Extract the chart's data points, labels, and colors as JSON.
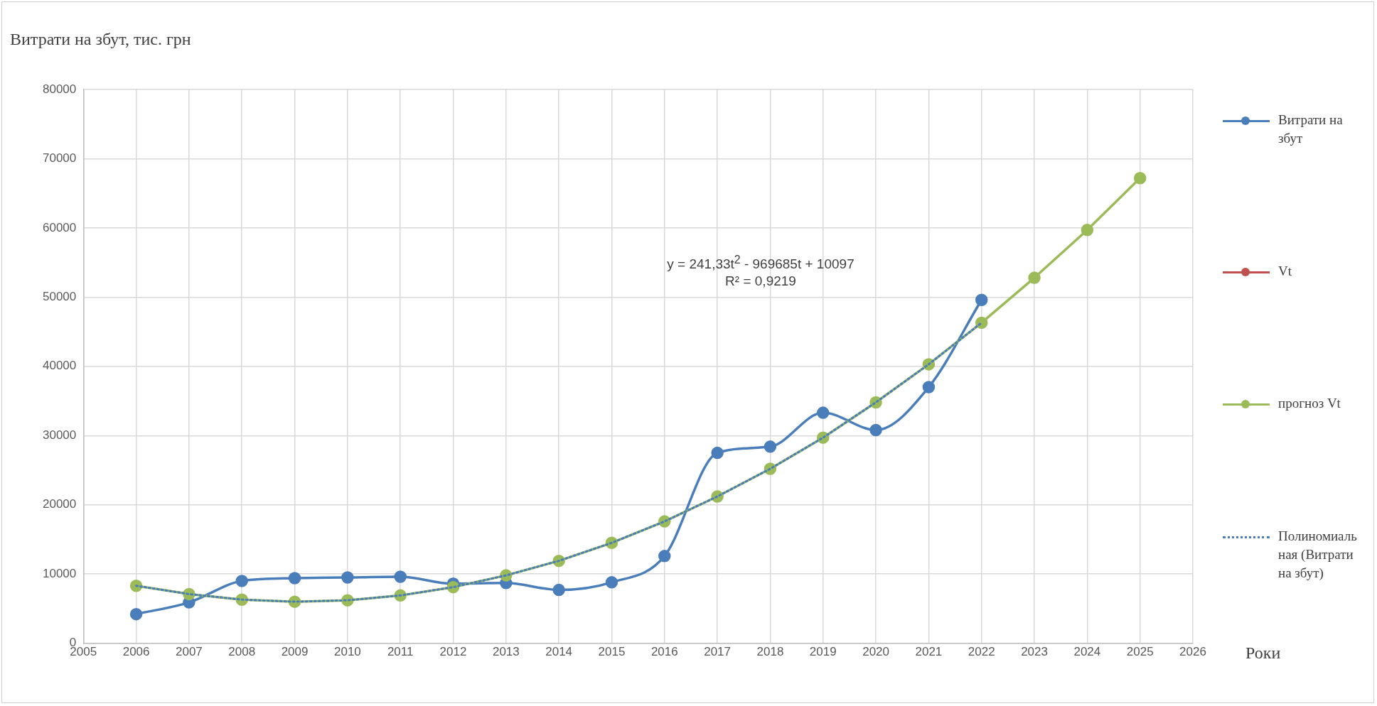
{
  "chart_data": {
    "type": "line",
    "ylabel": "Витрати на збут, тис. грн",
    "xlabel": "Роки",
    "annotations": [
      "y = 241,33t$^{2}$ - 969685t + 10097",
      "R² = 0,9219"
    ],
    "xlim": [
      2005,
      2026
    ],
    "xticks": [
      2005,
      2006,
      2007,
      2008,
      2009,
      2010,
      2011,
      2012,
      2013,
      2014,
      2015,
      2016,
      2017,
      2018,
      2019,
      2020,
      2021,
      2022,
      2023,
      2024,
      2025,
      2026
    ],
    "ylim": [
      0,
      80000
    ],
    "yticks": [
      0,
      10000,
      20000,
      30000,
      40000,
      50000,
      60000,
      70000,
      80000
    ],
    "grid": true,
    "legend": "right",
    "marker": "circle",
    "series": [
      {
        "name": "Витрати на збут",
        "color": "#4a7ebb",
        "x": [
          2006,
          2007,
          2008,
          2009,
          2010,
          2011,
          2012,
          2013,
          2014,
          2015,
          2016,
          2017,
          2018,
          2019,
          2020,
          2021,
          2022
        ],
        "values": [
          4200,
          5900,
          9000,
          9400,
          9500,
          9600,
          8600,
          8700,
          7700,
          8800,
          12600,
          27500,
          28400,
          33300,
          30800,
          37000,
          49600
        ]
      },
      {
        "name": "Vt",
        "color": "#c0504d"
      },
      {
        "name": "прогноз Vt",
        "color": "#9bbb59",
        "x": [
          2006,
          2007,
          2008,
          2009,
          2010,
          2011,
          2012,
          2013,
          2014,
          2015,
          2016,
          2017,
          2018,
          2019,
          2020,
          2021,
          2022,
          2023,
          2024,
          2025
        ],
        "values": [
          8300,
          7100,
          6300,
          6000,
          6200,
          6900,
          8100,
          9800,
          11900,
          14500,
          17600,
          21200,
          25200,
          29700,
          34800,
          40300,
          46300,
          52800,
          59700,
          67200
        ]
      },
      {
        "name": "Полиномиальная (Витрати на збут)",
        "color": "#4a7ebb",
        "type": "line",
        "marker": "none",
        "line_style": "dotted",
        "x": [
          2006,
          2007,
          2008,
          2009,
          2010,
          2011,
          2012,
          2013,
          2014,
          2015,
          2016,
          2017,
          2018,
          2019,
          2020,
          2021,
          2022
        ],
        "values": [
          8300,
          7100,
          6300,
          6000,
          6200,
          6900,
          8100,
          9800,
          11900,
          14500,
          17600,
          21200,
          25200,
          29700,
          34800,
          40300,
          46300
        ]
      }
    ]
  }
}
